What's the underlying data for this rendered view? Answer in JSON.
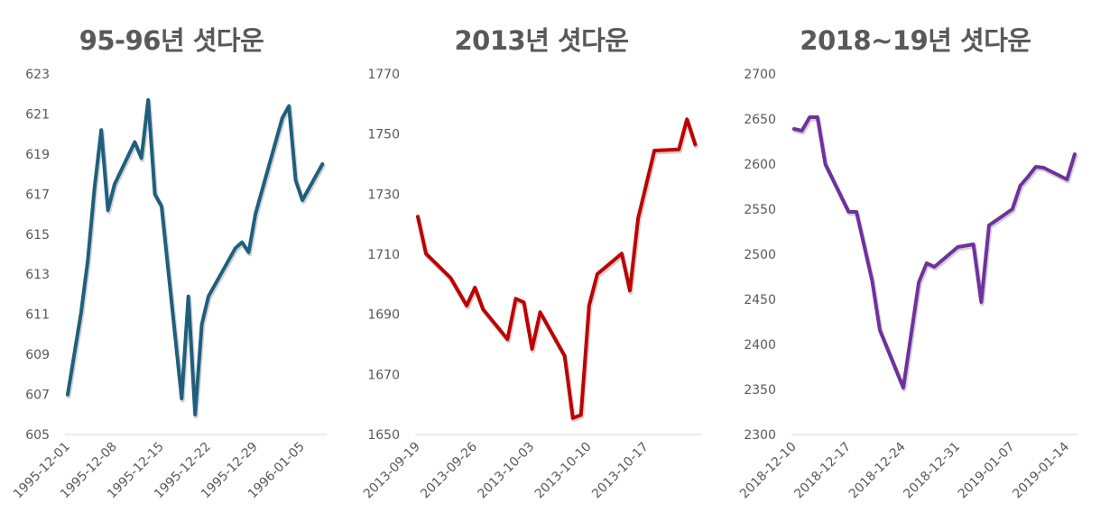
{
  "chart_data": [
    {
      "type": "line",
      "title": "95-96년 셧다운",
      "color": "#1F5F7E",
      "xlabel": "",
      "ylabel": "",
      "x_unit": "days since 1995-12-01",
      "xlim": [
        0,
        38
      ],
      "ylim": [
        605,
        623
      ],
      "y_ticks": [
        605,
        607,
        609,
        611,
        613,
        615,
        617,
        619,
        621,
        623
      ],
      "x_tick_labels": [
        "1995-12-01",
        "1995-12-08",
        "1995-12-15",
        "1995-12-22",
        "1995-12-29",
        "1996-01-05"
      ],
      "x": [
        0,
        2,
        3,
        4,
        5,
        6,
        7,
        10,
        11,
        12,
        13,
        14,
        17,
        18,
        19,
        20,
        21,
        25,
        26,
        27,
        28,
        32,
        33,
        34,
        35,
        38
      ],
      "values": [
        607.0,
        611.1,
        613.7,
        617.3,
        620.2,
        616.2,
        617.5,
        619.6,
        618.8,
        621.7,
        617.0,
        616.4,
        606.8,
        611.9,
        606.0,
        610.5,
        611.9,
        614.3,
        614.6,
        614.1,
        616.0,
        620.8,
        621.4,
        617.7,
        616.7,
        618.5
      ]
    },
    {
      "type": "line",
      "title": "2013년 셧다운",
      "color": "#C00000",
      "xlabel": "",
      "ylabel": "",
      "x_unit": "days since 2013-09-19",
      "xlim": [
        0,
        34
      ],
      "ylim": [
        1650,
        1770
      ],
      "y_ticks": [
        1650,
        1670,
        1690,
        1710,
        1730,
        1750,
        1770
      ],
      "x_tick_labels": [
        "2013-09-19",
        "2013-09-26",
        "2013-10-03",
        "2013-10-10",
        "2013-10-17"
      ],
      "x": [
        0,
        1,
        4,
        6,
        7,
        8,
        11,
        12,
        13,
        14,
        15,
        18,
        19,
        20,
        21,
        22,
        25,
        26,
        27,
        29,
        32,
        33,
        34
      ],
      "values": [
        1722.5,
        1710.2,
        1702.2,
        1692.9,
        1698.9,
        1691.7,
        1681.7,
        1695.2,
        1694.0,
        1678.5,
        1690.7,
        1676.2,
        1655.5,
        1656.5,
        1692.9,
        1703.4,
        1710.2,
        1697.9,
        1721.9,
        1744.5,
        1744.9,
        1754.9,
        1746.5
      ]
    },
    {
      "type": "line",
      "title": "2018~19년 셧다운",
      "color": "#7030A0",
      "xlabel": "",
      "ylabel": "",
      "x_unit": "days since 2018-12-10",
      "xlim": [
        0,
        37
      ],
      "ylim": [
        2300,
        2700
      ],
      "y_ticks": [
        2300,
        2350,
        2400,
        2450,
        2500,
        2550,
        2600,
        2650,
        2700
      ],
      "x_tick_labels": [
        "2018-12-10",
        "2018-12-17",
        "2018-12-24",
        "2018-12-31",
        "2019-01-07",
        "2019-01-14"
      ],
      "x": [
        0,
        1,
        2,
        3,
        4,
        7,
        8,
        10,
        11,
        14,
        16,
        17,
        18,
        21,
        23,
        24,
        25,
        28,
        29,
        30,
        31,
        32,
        35,
        36
      ],
      "values": [
        2639,
        2637,
        2652,
        2652,
        2600,
        2547,
        2547,
        2471,
        2416,
        2352,
        2469,
        2490,
        2486,
        2508,
        2511,
        2447,
        2532,
        2550,
        2576,
        2586,
        2597,
        2596,
        2583,
        2611
      ]
    }
  ]
}
